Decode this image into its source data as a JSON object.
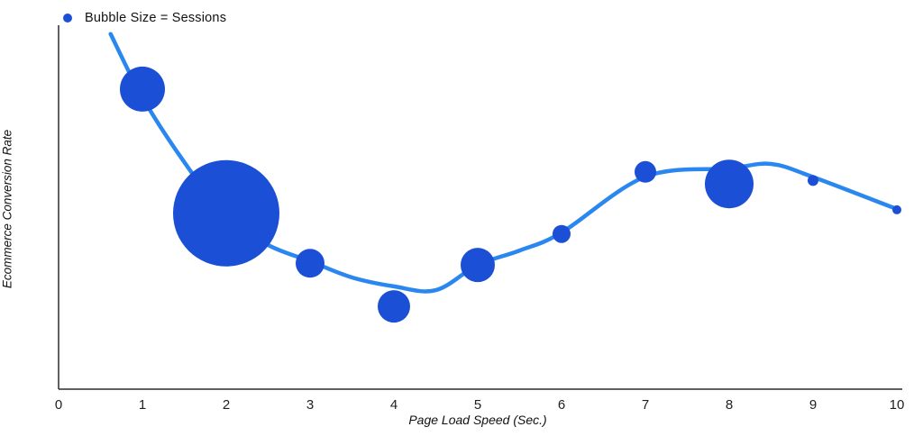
{
  "legend": {
    "label": "Bubble Size = Sessions"
  },
  "axes": {
    "x_label": "Page Load Speed (Sec.)",
    "y_label": "Ecommerce Conversion Rate"
  },
  "colors": {
    "bubble": "#1b50d6",
    "line": "#2b87f0",
    "axis": "#2b2b2b",
    "text": "#1f1f1f"
  },
  "chart_data": {
    "type": "scatter",
    "title": "",
    "xlabel": "Page Load Speed (Sec.)",
    "ylabel": "Ecommerce Conversion Rate",
    "legend": "Bubble Size = Sessions",
    "xlim": [
      0,
      10
    ],
    "ylim": [
      0,
      10.5
    ],
    "x_ticks": [
      0,
      1,
      2,
      3,
      4,
      5,
      6,
      7,
      8,
      9,
      10
    ],
    "y_ticks_shown": false,
    "grid": false,
    "legend_position": "top-left",
    "bubbles": [
      {
        "x": 1,
        "y": 8.7,
        "r": 25
      },
      {
        "x": 2,
        "y": 5.1,
        "r": 59
      },
      {
        "x": 3,
        "y": 3.65,
        "r": 16
      },
      {
        "x": 4,
        "y": 2.4,
        "r": 18
      },
      {
        "x": 5,
        "y": 3.6,
        "r": 19
      },
      {
        "x": 6,
        "y": 4.5,
        "r": 10
      },
      {
        "x": 7,
        "y": 6.3,
        "r": 12
      },
      {
        "x": 8,
        "y": 5.95,
        "r": 27
      },
      {
        "x": 9,
        "y": 6.05,
        "r": 6
      },
      {
        "x": 10,
        "y": 5.2,
        "r": 5
      }
    ],
    "trend_line": [
      [
        0.62,
        10.3
      ],
      [
        1,
        8.46
      ],
      [
        1.5,
        6.58
      ],
      [
        2,
        5.01
      ],
      [
        2.5,
        4.18
      ],
      [
        3,
        3.71
      ],
      [
        3.5,
        3.24
      ],
      [
        4,
        2.98
      ],
      [
        4.5,
        2.87
      ],
      [
        5,
        3.6
      ],
      [
        5.5,
        4.02
      ],
      [
        6,
        4.54
      ],
      [
        7,
        6.16
      ],
      [
        8,
        6.4
      ],
      [
        8.5,
        6.53
      ],
      [
        9,
        6.15
      ],
      [
        10,
        5.22
      ]
    ]
  }
}
